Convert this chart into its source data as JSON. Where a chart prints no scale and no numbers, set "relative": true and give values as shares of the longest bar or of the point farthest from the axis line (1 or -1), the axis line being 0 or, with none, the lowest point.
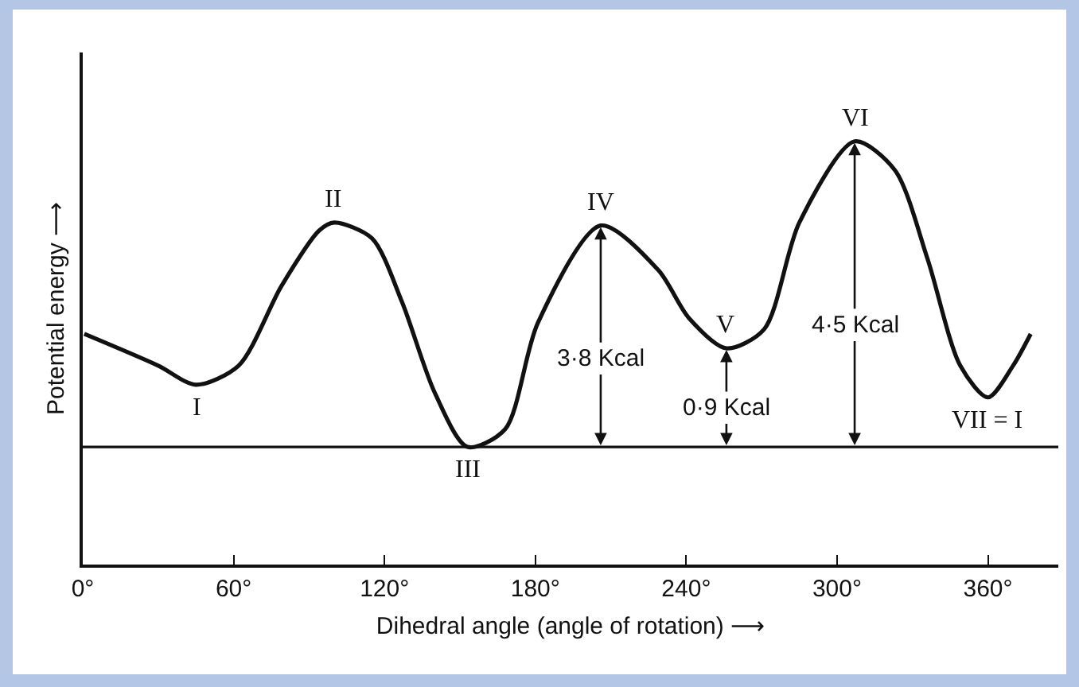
{
  "chart_data": {
    "type": "line",
    "relative": true,
    "xlabel": "Dihedral angle (angle of rotation) ⟶",
    "ylabel": "Potential energy ⟶",
    "x": [
      0.6,
      30,
      45,
      62,
      79,
      94,
      100,
      115,
      127,
      140,
      153,
      168,
      181,
      206,
      229,
      241,
      256,
      271,
      285,
      307,
      323,
      336,
      349,
      360,
      370,
      377
    ],
    "series": [
      {
        "color": "#111111",
        "values": [
          0.545,
          0.47,
          0.425,
          0.47,
          0.658,
          0.789,
          0.808,
          0.771,
          0.62,
          0.406,
          0.278,
          0.32,
          0.571,
          0.801,
          0.695,
          0.583,
          0.511,
          0.556,
          0.808,
          1,
          0.932,
          0.722,
          0.47,
          0.395,
          0.47,
          0.545
        ]
      }
    ],
    "xlim": [
      0,
      388
    ],
    "xticks": [
      {
        "value": 0,
        "label": "0°"
      },
      {
        "value": 60,
        "label": "60°"
      },
      {
        "value": 120,
        "label": "120°"
      },
      {
        "value": 180,
        "label": "180°"
      },
      {
        "value": 240,
        "label": "240°"
      },
      {
        "value": 300,
        "label": "300°"
      },
      {
        "value": 360,
        "label": "360°"
      }
    ],
    "ref_lines": [
      {
        "axis": "y",
        "value": 0.278,
        "color": "#111111"
      }
    ],
    "grid": false,
    "marker": "none",
    "line_style": "solid",
    "annotations": [
      {
        "text": "I",
        "x": 45,
        "y": 0.425
      },
      {
        "text": "II",
        "x": 100,
        "y": 0.808
      },
      {
        "text": "III",
        "x": 153,
        "y": 0.278
      },
      {
        "text": "IV",
        "x": 206,
        "y": 0.801
      },
      {
        "text": "V",
        "x": 256,
        "y": 0.511
      },
      {
        "text": "VI",
        "x": 307,
        "y": 1
      },
      {
        "text": "VII = I",
        "x": 360,
        "y": 0.395
      },
      {
        "text": "3·8 Kcal",
        "x": 206,
        "y": 0.801
      },
      {
        "text": "0·9 Kcal",
        "x": 256,
        "y": 0.511
      },
      {
        "text": "4·5 Kcal",
        "x": 307,
        "y": 1
      }
    ]
  }
}
